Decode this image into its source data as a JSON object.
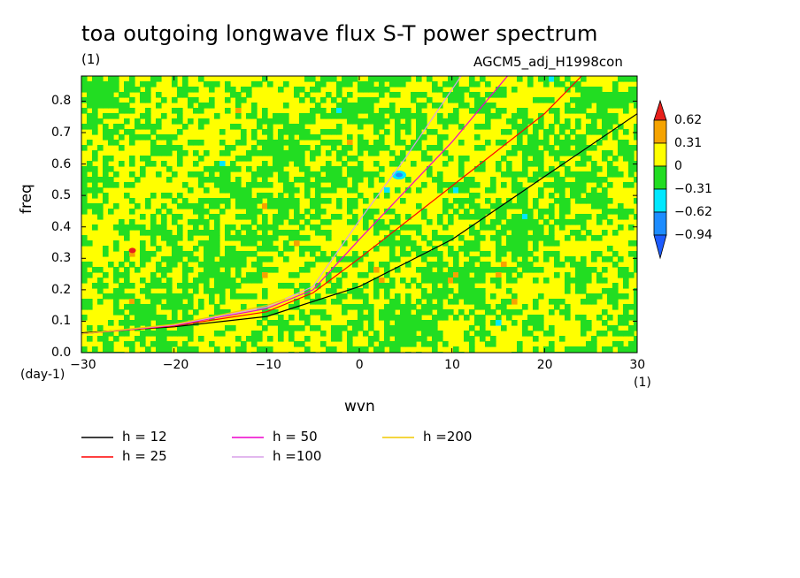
{
  "title": "toa outgoing longwave flux S-T power spectrum",
  "units_label": "(1)",
  "dataset_label": "AGCM5_adj_H1998con",
  "chart_data": {
    "type": "heatmap",
    "title": "toa outgoing longwave flux S-T power spectrum",
    "xlabel": "wvn",
    "ylabel": "freq",
    "x_unit": "(1)",
    "y_unit": "(day-1)",
    "xlim": [
      -30,
      30
    ],
    "ylim": [
      0,
      0.88
    ],
    "xticks": [
      "-30",
      "-20",
      "-10",
      "0",
      "10",
      "20",
      "30"
    ],
    "yticks": [
      "0.0",
      "0.1",
      "0.2",
      "0.3",
      "0.4",
      "0.5",
      "0.6",
      "0.7",
      "0.8"
    ],
    "colorbar": {
      "levels": [
        "0.62",
        "0.31",
        "0",
        "-0.31",
        "-0.62",
        "-0.94"
      ],
      "colors": [
        "#e8201c",
        "#f5a300",
        "#ffff00",
        "#22dd22",
        "#00e8ff",
        "#1d8cff",
        "#1d5cff"
      ]
    },
    "contour_fill_note": "noisy field dominated by values between -0.31 and 0.31",
    "series": [
      {
        "name": "h = 12",
        "color": "#000000",
        "x": [
          -30,
          -20,
          -10,
          0,
          10,
          20,
          30
        ],
        "y": [
          0.063,
          0.082,
          0.115,
          0.21,
          0.36,
          0.56,
          0.76
        ]
      },
      {
        "name": "h = 25",
        "color": "#ff0000",
        "x": [
          -30,
          -20,
          -10,
          -5,
          0,
          10,
          20,
          24
        ],
        "y": [
          0.06,
          0.085,
          0.13,
          0.19,
          0.3,
          0.53,
          0.76,
          0.88
        ]
      },
      {
        "name": "h = 50",
        "color": "#ee00cc",
        "x": [
          -30,
          -20,
          -10,
          -5,
          0,
          10,
          16
        ],
        "y": [
          0.06,
          0.087,
          0.14,
          0.2,
          0.36,
          0.67,
          0.88
        ]
      },
      {
        "name": "h =100",
        "color": "#d8a0e8",
        "x": [
          -30,
          -20,
          -10,
          -5,
          0,
          5,
          11
        ],
        "y": [
          0.06,
          0.088,
          0.145,
          0.21,
          0.42,
          0.62,
          0.88
        ]
      },
      {
        "name": "h =200",
        "color": "#f0c800",
        "x": [
          -30,
          -20,
          -10,
          -8
        ],
        "y": [
          0.06,
          0.09,
          0.15,
          0.17
        ]
      }
    ]
  }
}
